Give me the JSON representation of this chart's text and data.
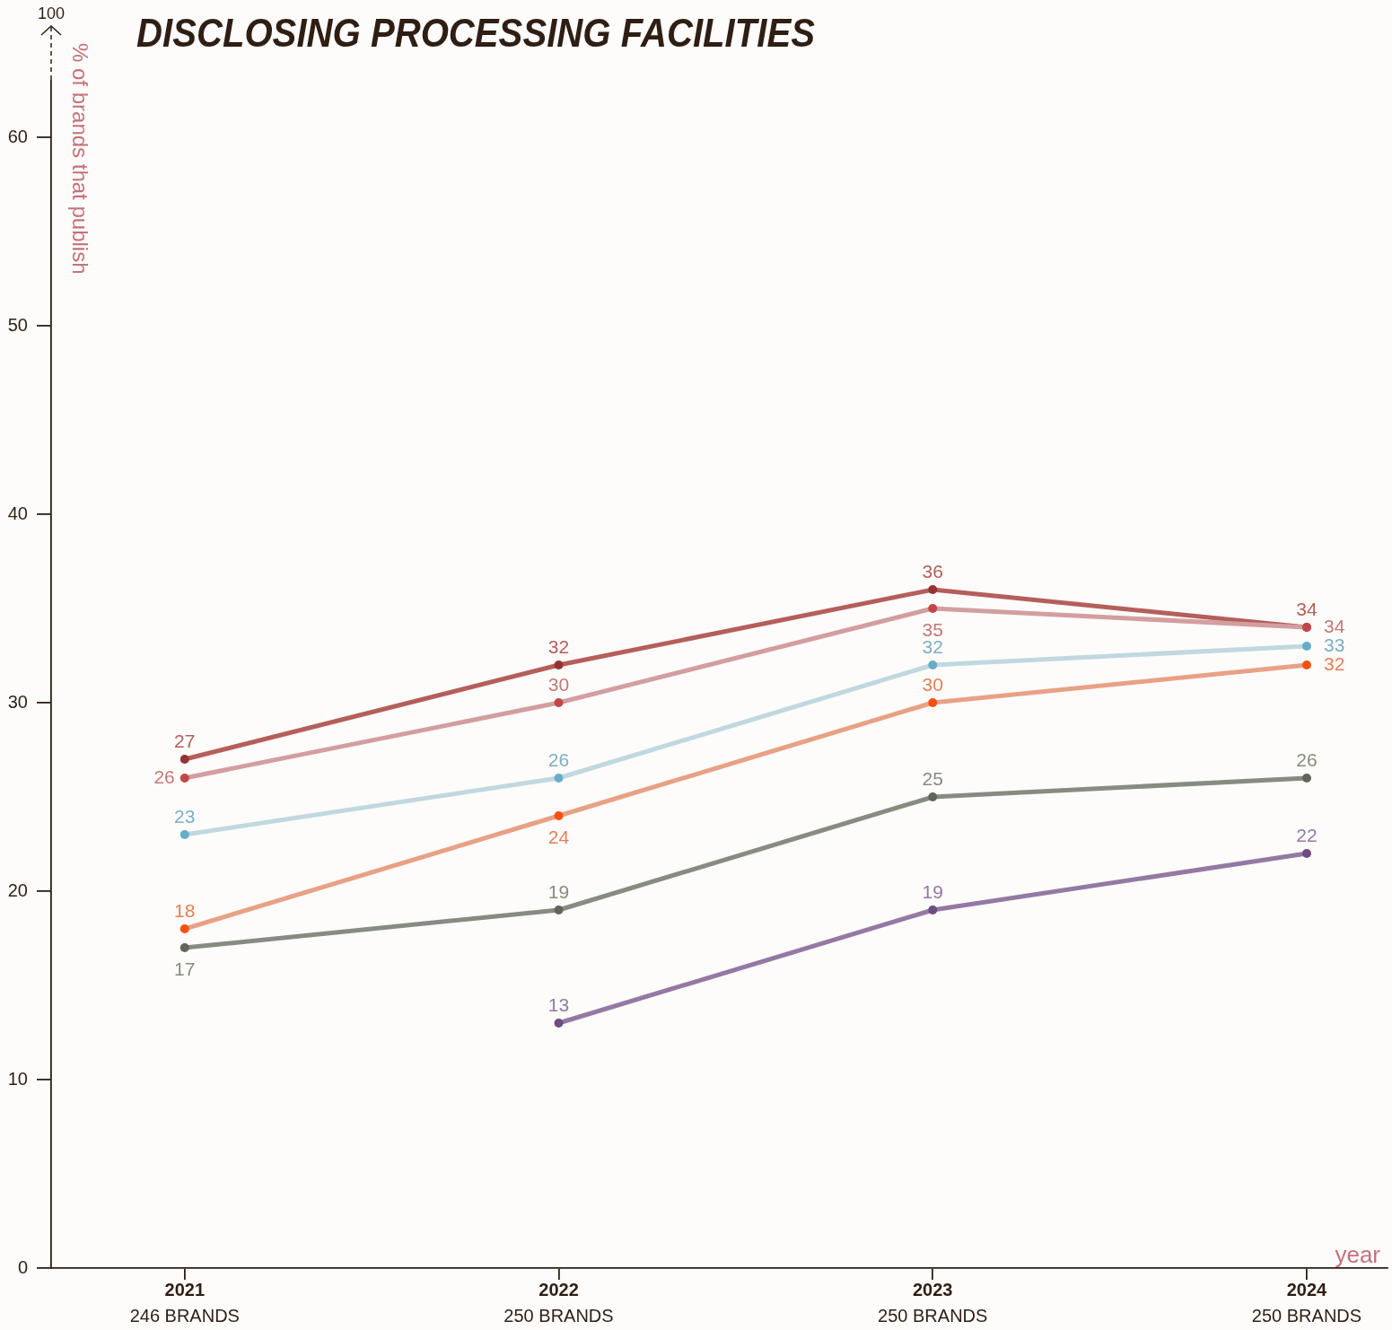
{
  "chart_data": {
    "type": "line",
    "title": "DISCLOSING PROCESSING FACILITIES",
    "xlabel": "year",
    "ylabel": "% of brands that publish",
    "categories": [
      "2021\n246 BRANDS",
      "2022\n250 BRANDS",
      "2023\n250 BRANDS",
      "2024\n250 BRANDS"
    ],
    "series": [
      {
        "color": "#b55e5b",
        "values": [
          27,
          32,
          36,
          34
        ]
      },
      {
        "color": "#d39e9f",
        "values": [
          26,
          30,
          35,
          34
        ]
      },
      {
        "color": "#c0d8e0",
        "values": [
          23,
          26,
          32,
          33
        ]
      },
      {
        "color": "#e8a185",
        "values": [
          18,
          24,
          30,
          32
        ]
      },
      {
        "color": "#878b80",
        "values": [
          17,
          19,
          25,
          26
        ]
      },
      {
        "color": "#9479a4",
        "values": [
          null,
          13,
          19,
          22
        ]
      }
    ],
    "ylim": [
      0,
      63
    ],
    "yticks": [
      0,
      10,
      20,
      30,
      40,
      50,
      60
    ],
    "annotations": [
      "100"
    ],
    "data_labels": true,
    "marker": "circle",
    "line_style": "solid"
  }
}
